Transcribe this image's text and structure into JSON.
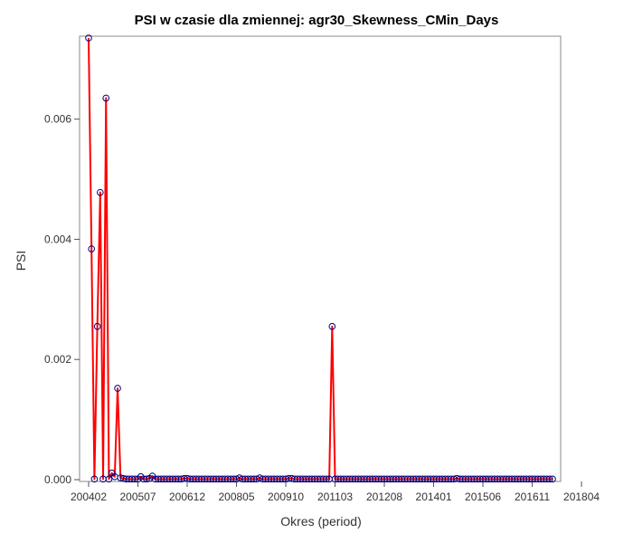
{
  "chart_data": {
    "type": "line",
    "title": "PSI w czasie dla zmiennej: agr30_Skewness_CMin_Days",
    "xlabel": "Okres (period)",
    "ylabel": "PSI",
    "ylim": [
      -3e-05,
      0.00738
    ],
    "yticks": [
      "0.000",
      "0.002",
      "0.004",
      "0.006"
    ],
    "xtick_labels": [
      "200402",
      "200507",
      "200612",
      "200805",
      "200910",
      "201103",
      "201208",
      "201401",
      "201506",
      "201611",
      "201804"
    ],
    "x_start_period": "200402",
    "colors": {
      "line": "#ff0000",
      "marker": "#000080",
      "frame": "#888888"
    },
    "values": [
      0.00735,
      0.00384,
      1e-05,
      0.00255,
      0.00478,
      1e-05,
      0.00635,
      1e-05,
      0.00011,
      5e-05,
      0.00152,
      3e-05,
      2e-05,
      1e-05,
      1e-05,
      1e-05,
      1e-05,
      1e-05,
      5e-05,
      1e-05,
      1e-05,
      2e-05,
      6e-05,
      1e-05,
      1e-05,
      1e-05,
      1e-05,
      1e-05,
      1e-05,
      1e-05,
      1e-05,
      1e-05,
      1e-05,
      2e-05,
      2e-05,
      1e-05,
      1e-05,
      1e-05,
      1e-05,
      1e-05,
      1e-05,
      1e-05,
      1e-05,
      1e-05,
      1e-05,
      1e-05,
      1e-05,
      1e-05,
      1e-05,
      1e-05,
      1e-05,
      1e-05,
      3e-05,
      1e-05,
      1e-05,
      1e-05,
      1e-05,
      1e-05,
      1e-05,
      3e-05,
      1e-05,
      1e-05,
      1e-05,
      1e-05,
      1e-05,
      1e-05,
      1e-05,
      1e-05,
      1e-05,
      2e-05,
      2e-05,
      1e-05,
      1e-05,
      1e-05,
      1e-05,
      1e-05,
      1e-05,
      1e-05,
      1e-05,
      1e-05,
      1e-05,
      1e-05,
      1e-05,
      1e-05,
      0.00255,
      1e-05,
      1e-05,
      1e-05,
      1e-05,
      1e-05,
      1e-05,
      1e-05,
      1e-05,
      1e-05,
      1e-05,
      1e-05,
      1e-05,
      1e-05,
      1e-05,
      1e-05,
      1e-05,
      1e-05,
      1e-05,
      1e-05,
      1e-05,
      1e-05,
      1e-05,
      1e-05,
      1e-05,
      1e-05,
      1e-05,
      1e-05,
      1e-05,
      1e-05,
      1e-05,
      1e-05,
      1e-05,
      1e-05,
      1e-05,
      1e-05,
      1e-05,
      1e-05,
      1e-05,
      1e-05,
      1e-05,
      1e-05,
      1e-05,
      2e-05,
      1e-05,
      1e-05,
      1e-05,
      1e-05,
      1e-05,
      1e-05,
      1e-05,
      1e-05,
      1e-05,
      1e-05,
      1e-05,
      1e-05,
      1e-05,
      1e-05,
      1e-05,
      1e-05,
      1e-05,
      1e-05,
      1e-05,
      1e-05,
      1e-05,
      1e-05,
      1e-05,
      1e-05,
      1e-05,
      1e-05,
      1e-05,
      1e-05,
      1e-05,
      1e-05,
      1e-05,
      1e-05,
      1e-05
    ]
  }
}
